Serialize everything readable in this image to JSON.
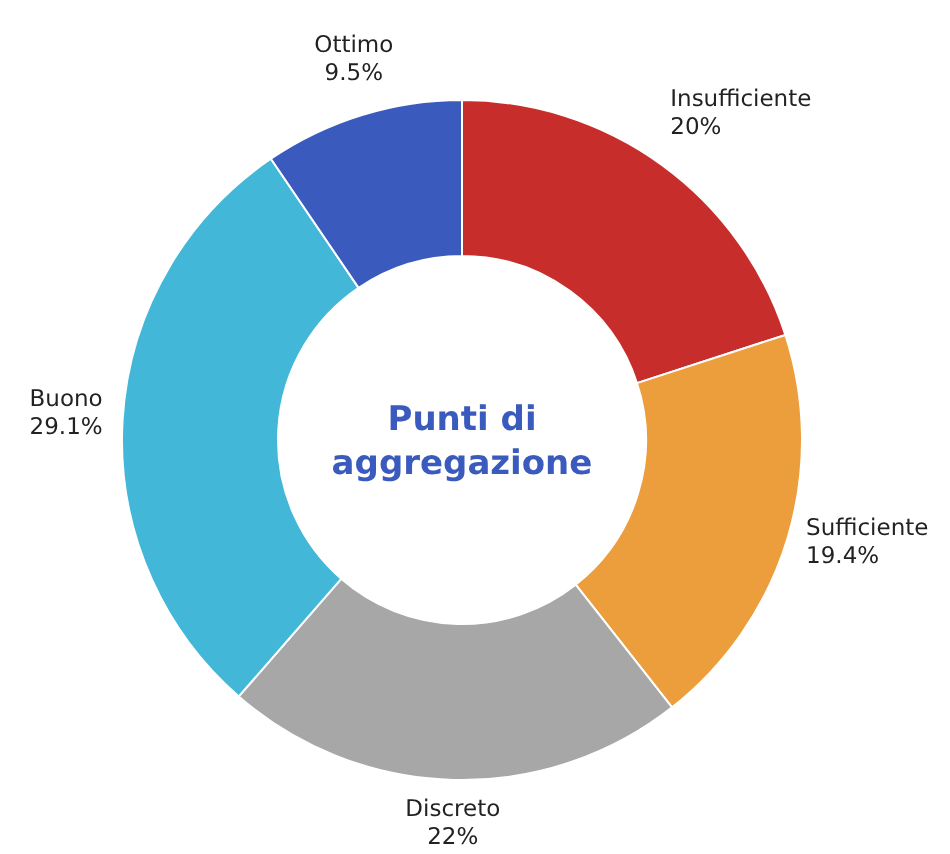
{
  "chart_data": {
    "type": "donut",
    "title": "Punti di aggregazione",
    "categories": [
      "Insufficiente",
      "Sufficiente",
      "Discreto",
      "Buono",
      "Ottimo"
    ],
    "values": [
      20,
      19.4,
      22,
      29.1,
      9.5
    ],
    "value_labels": [
      "20%",
      "19.4%",
      "22%",
      "29.1%",
      "9.5%"
    ],
    "colors": [
      "#c62d2b",
      "#ec9d3c",
      "#a7a7a7",
      "#42b7d7",
      "#3a5bbd"
    ]
  }
}
